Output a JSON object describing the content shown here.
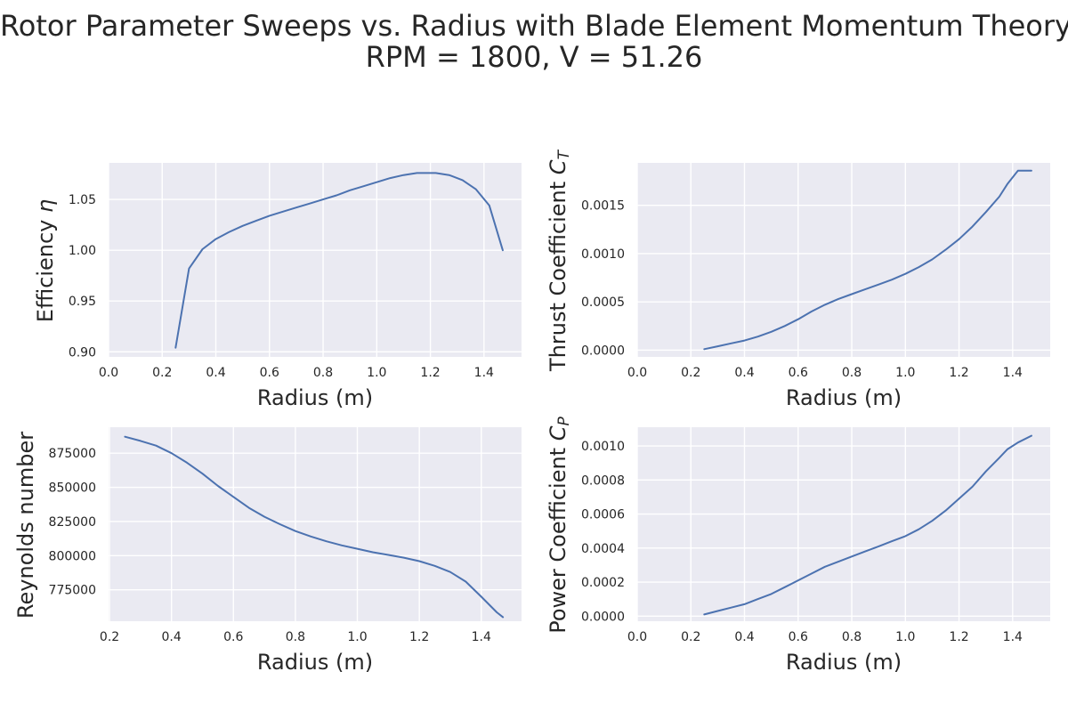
{
  "figure": {
    "title_line1": "Rotor Parameter Sweeps vs. Radius with Blade Element Momentum Theory",
    "title_line2": "RPM = 1800, V = 51.26"
  },
  "colors": {
    "background": "#ffffff",
    "axes_face": "#EAEAF2",
    "grid": "#ffffff",
    "line": "#4C72B0",
    "text": "#262626"
  },
  "chart_data": [
    {
      "type": "line",
      "xlabel": "Radius (m)",
      "ylabel": "Efficiency η",
      "xlim": [
        0.0,
        1.54
      ],
      "ylim": [
        0.895,
        1.086
      ],
      "xticks": [
        0.0,
        0.2,
        0.4,
        0.6,
        0.8,
        1.0,
        1.2,
        1.4
      ],
      "xtick_labels": [
        "0.0",
        "0.2",
        "0.4",
        "0.6",
        "0.8",
        "1.0",
        "1.2",
        "1.4"
      ],
      "yticks": [
        0.9,
        0.95,
        1.0,
        1.05
      ],
      "ytick_labels": [
        "0.90",
        "0.95",
        "1.00",
        "1.05"
      ],
      "grid": true,
      "x": [
        0.25,
        0.3,
        0.35,
        0.4,
        0.45,
        0.5,
        0.55,
        0.6,
        0.65,
        0.7,
        0.75,
        0.8,
        0.85,
        0.9,
        0.95,
        1.0,
        1.05,
        1.1,
        1.15,
        1.2,
        1.22,
        1.27,
        1.32,
        1.37,
        1.42,
        1.47
      ],
      "y": [
        0.904,
        0.982,
        1.001,
        1.011,
        1.018,
        1.024,
        1.029,
        1.034,
        1.038,
        1.042,
        1.046,
        1.05,
        1.054,
        1.059,
        1.063,
        1.067,
        1.071,
        1.074,
        1.076,
        1.076,
        1.076,
        1.074,
        1.069,
        1.06,
        1.044,
        1.0
      ]
    },
    {
      "type": "line",
      "xlabel": "Radius (m)",
      "ylabel": "Thrust Coefficient C_T",
      "ylabel_main": "Thrust Coefficient ",
      "ylabel_symbol": "C",
      "ylabel_sub": "T",
      "xlim": [
        0.0,
        1.54
      ],
      "ylim": [
        -7e-05,
        0.00194
      ],
      "xticks": [
        0.0,
        0.2,
        0.4,
        0.6,
        0.8,
        1.0,
        1.2,
        1.4
      ],
      "xtick_labels": [
        "0.0",
        "0.2",
        "0.4",
        "0.6",
        "0.8",
        "1.0",
        "1.2",
        "1.4"
      ],
      "yticks": [
        0.0,
        0.0005,
        0.001,
        0.0015
      ],
      "ytick_labels": [
        "0.0000",
        "0.0005",
        "0.0010",
        "0.0015"
      ],
      "grid": true,
      "x": [
        0.25,
        0.3,
        0.35,
        0.4,
        0.45,
        0.5,
        0.55,
        0.6,
        0.65,
        0.7,
        0.75,
        0.8,
        0.85,
        0.9,
        0.95,
        1.0,
        1.05,
        1.1,
        1.15,
        1.2,
        1.25,
        1.3,
        1.35,
        1.38,
        1.42,
        1.47
      ],
      "y": [
        1e-05,
        4e-05,
        7e-05,
        0.0001,
        0.00014,
        0.00019,
        0.00025,
        0.00032,
        0.0004,
        0.00047,
        0.00053,
        0.00058,
        0.00063,
        0.00068,
        0.00073,
        0.00079,
        0.00086,
        0.00094,
        0.00104,
        0.00115,
        0.00128,
        0.00143,
        0.00159,
        0.00172,
        0.00186,
        0.00186
      ]
    },
    {
      "type": "line",
      "xlabel": "Radius (m)",
      "ylabel": "Reynolds number",
      "xlim": [
        0.197,
        1.53
      ],
      "ylim": [
        752000,
        894000
      ],
      "xticks": [
        0.2,
        0.4,
        0.6,
        0.8,
        1.0,
        1.2,
        1.4
      ],
      "xtick_labels": [
        "0.2",
        "0.4",
        "0.6",
        "0.8",
        "1.0",
        "1.2",
        "1.4"
      ],
      "yticks": [
        775000,
        800000,
        825000,
        850000,
        875000
      ],
      "ytick_labels": [
        "775000",
        "800000",
        "825000",
        "850000",
        "875000"
      ],
      "grid": true,
      "x": [
        0.25,
        0.3,
        0.35,
        0.4,
        0.45,
        0.5,
        0.55,
        0.6,
        0.65,
        0.7,
        0.75,
        0.8,
        0.85,
        0.9,
        0.95,
        1.0,
        1.05,
        1.1,
        1.15,
        1.2,
        1.25,
        1.3,
        1.35,
        1.4,
        1.45,
        1.47
      ],
      "y": [
        887000,
        884000,
        880500,
        875000,
        868000,
        860000,
        851000,
        843000,
        835000,
        828500,
        823000,
        818000,
        814000,
        810500,
        807500,
        805000,
        802500,
        800500,
        798500,
        796000,
        792500,
        788000,
        781000,
        770000,
        758500,
        755000
      ]
    },
    {
      "type": "line",
      "xlabel": "Radius (m)",
      "ylabel": "Power Coefficient C_P",
      "ylabel_main": "Power Coefficient ",
      "ylabel_symbol": "C",
      "ylabel_sub": "P",
      "xlim": [
        0.0,
        1.54
      ],
      "ylim": [
        -3e-05,
        0.00111
      ],
      "xticks": [
        0.0,
        0.2,
        0.4,
        0.6,
        0.8,
        1.0,
        1.2,
        1.4
      ],
      "xtick_labels": [
        "0.0",
        "0.2",
        "0.4",
        "0.6",
        "0.8",
        "1.0",
        "1.2",
        "1.4"
      ],
      "yticks": [
        0.0,
        0.0002,
        0.0004,
        0.0006,
        0.0008,
        0.001
      ],
      "ytick_labels": [
        "0.0000",
        "0.0002",
        "0.0004",
        "0.0006",
        "0.0008",
        "0.0010"
      ],
      "grid": true,
      "x": [
        0.25,
        0.3,
        0.35,
        0.4,
        0.45,
        0.5,
        0.55,
        0.6,
        0.65,
        0.7,
        0.75,
        0.8,
        0.85,
        0.9,
        0.95,
        1.0,
        1.05,
        1.1,
        1.15,
        1.2,
        1.25,
        1.3,
        1.35,
        1.38,
        1.42,
        1.47
      ],
      "y": [
        1e-05,
        3e-05,
        5e-05,
        7e-05,
        0.0001,
        0.00013,
        0.00017,
        0.00021,
        0.00025,
        0.00029,
        0.00032,
        0.00035,
        0.00038,
        0.00041,
        0.00044,
        0.00047,
        0.00051,
        0.00056,
        0.00062,
        0.00069,
        0.00076,
        0.00085,
        0.00093,
        0.00098,
        0.00102,
        0.00106
      ]
    }
  ]
}
